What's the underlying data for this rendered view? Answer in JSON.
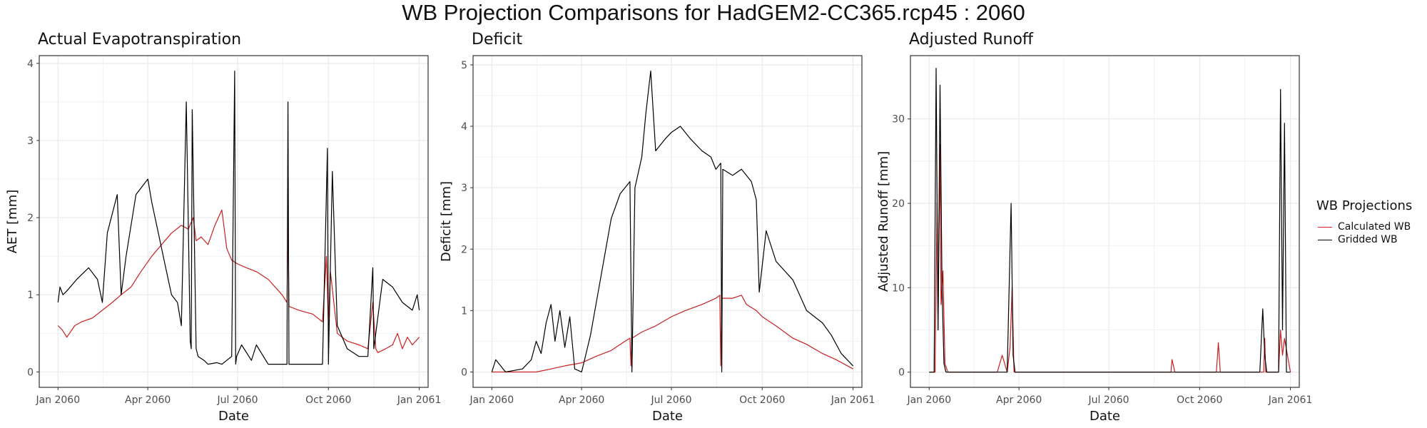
{
  "title": "WB Projection Comparisons for HadGEM2-CC365.rcp45 : 2060",
  "colors": {
    "calculated": "#cc1f1f",
    "gridded": "#000000",
    "grid": "#ebebeb",
    "panel_border": "#333333"
  },
  "legend": {
    "title": "WB Projections",
    "items": [
      {
        "name": "Calculated WB",
        "color": "#cc1f1f"
      },
      {
        "name": "Gridded WB",
        "color": "#000000"
      }
    ]
  },
  "chart_data": [
    {
      "type": "line",
      "title": "Actual Evapotranspiration",
      "xlabel": "Date",
      "ylabel": "AET [mm]",
      "xlim": [
        "2059-12-13",
        "2061-01-10"
      ],
      "ylim": [
        -0.2,
        4.1
      ],
      "x_ticks": [
        "2060-01-01",
        "2060-04-01",
        "2060-07-01",
        "2060-10-01",
        "2061-01-01"
      ],
      "x_tick_labels": [
        "Jan 2060",
        "Apr 2060",
        "Jul 2060",
        "Oct 2060",
        "Jan 2061"
      ],
      "y_ticks": [
        0,
        1,
        2,
        3,
        4
      ],
      "grid": true,
      "legend": "right",
      "series": [
        {
          "name": "Calculated WB",
          "color": "#cc1f1f",
          "x": [
            "2060-01-01",
            "2060-01-05",
            "2060-01-10",
            "2060-01-18",
            "2060-01-25",
            "2060-02-05",
            "2060-02-15",
            "2060-02-25",
            "2060-03-05",
            "2060-03-15",
            "2060-03-25",
            "2060-04-05",
            "2060-04-15",
            "2060-04-25",
            "2060-05-05",
            "2060-05-12",
            "2060-05-17",
            "2060-05-20",
            "2060-05-25",
            "2060-06-01",
            "2060-06-08",
            "2060-06-15",
            "2060-06-20",
            "2060-06-25",
            "2060-07-01",
            "2060-07-10",
            "2060-07-20",
            "2060-08-01",
            "2060-08-15",
            "2060-08-20",
            "2060-08-21",
            "2060-08-22",
            "2060-09-01",
            "2060-09-15",
            "2060-09-25",
            "2060-09-29",
            "2060-10-01",
            "2060-10-03",
            "2060-10-10",
            "2060-10-20",
            "2060-11-01",
            "2060-11-10",
            "2060-11-15",
            "2060-11-18",
            "2060-11-20",
            "2060-11-28",
            "2060-12-05",
            "2060-12-10",
            "2060-12-15",
            "2060-12-20",
            "2060-12-25",
            "2061-01-01"
          ],
          "y": [
            0.6,
            0.55,
            0.45,
            0.6,
            0.65,
            0.7,
            0.8,
            0.9,
            1.0,
            1.1,
            1.3,
            1.5,
            1.65,
            1.8,
            1.9,
            1.85,
            2.0,
            1.7,
            1.75,
            1.65,
            1.9,
            2.1,
            1.6,
            1.45,
            1.4,
            1.35,
            1.3,
            1.2,
            1.0,
            0.9,
            2.0,
            0.85,
            0.8,
            0.75,
            0.65,
            1.5,
            0.6,
            1.3,
            0.5,
            0.4,
            0.35,
            0.3,
            0.9,
            0.3,
            0.25,
            0.3,
            0.35,
            0.5,
            0.3,
            0.45,
            0.35,
            0.45
          ]
        },
        {
          "name": "Gridded WB",
          "color": "#000000",
          "x": [
            "2060-01-01",
            "2060-01-03",
            "2060-01-06",
            "2060-01-10",
            "2060-01-20",
            "2060-02-01",
            "2060-02-10",
            "2060-02-15",
            "2060-02-20",
            "2060-03-01",
            "2060-03-05",
            "2060-03-10",
            "2060-03-20",
            "2060-04-01",
            "2060-04-05",
            "2060-04-10",
            "2060-04-20",
            "2060-04-25",
            "2060-05-01",
            "2060-05-05",
            "2060-05-10",
            "2060-05-14",
            "2060-05-15",
            "2060-05-16",
            "2060-05-20",
            "2060-05-21",
            "2060-05-22",
            "2060-05-28",
            "2060-06-01",
            "2060-06-10",
            "2060-06-15",
            "2060-06-25",
            "2060-06-28",
            "2060-06-29",
            "2060-06-30",
            "2060-07-05",
            "2060-07-15",
            "2060-07-20",
            "2060-08-01",
            "2060-08-10",
            "2060-08-20",
            "2060-08-21",
            "2060-08-22",
            "2060-09-01",
            "2060-09-15",
            "2060-09-25",
            "2060-09-30",
            "2060-10-01",
            "2060-10-05",
            "2060-10-10",
            "2060-10-20",
            "2060-11-01",
            "2060-11-10",
            "2060-11-15",
            "2060-11-16",
            "2060-11-25",
            "2060-12-05",
            "2060-12-15",
            "2060-12-25",
            "2060-12-30",
            "2061-01-01"
          ],
          "y": [
            0.9,
            1.1,
            1.0,
            1.05,
            1.2,
            1.35,
            1.2,
            0.9,
            1.8,
            2.3,
            1.0,
            1.5,
            2.3,
            2.5,
            2.2,
            1.9,
            1.3,
            1.0,
            0.9,
            0.6,
            3.5,
            0.4,
            0.3,
            3.4,
            0.3,
            0.25,
            0.2,
            0.15,
            0.1,
            0.12,
            0.1,
            0.2,
            3.9,
            0.1,
            0.2,
            0.35,
            0.15,
            0.35,
            0.1,
            0.1,
            0.1,
            3.5,
            0.1,
            0.1,
            0.1,
            0.1,
            2.9,
            0.1,
            2.6,
            0.6,
            0.3,
            0.2,
            0.2,
            1.35,
            0.3,
            1.2,
            1.1,
            0.9,
            0.8,
            1.0,
            0.8
          ]
        }
      ]
    },
    {
      "type": "line",
      "title": "Deficit",
      "xlabel": "Date",
      "ylabel": "Deficit [mm]",
      "xlim": [
        "2059-12-13",
        "2061-01-10"
      ],
      "ylim": [
        -0.25,
        5.15
      ],
      "x_ticks": [
        "2060-01-01",
        "2060-04-01",
        "2060-07-01",
        "2060-10-01",
        "2061-01-01"
      ],
      "x_tick_labels": [
        "Jan 2060",
        "Apr 2060",
        "Jul 2060",
        "Oct 2060",
        "Jan 2061"
      ],
      "y_ticks": [
        0,
        1,
        2,
        3,
        4,
        5
      ],
      "grid": true,
      "legend": "right",
      "series": [
        {
          "name": "Calculated WB",
          "color": "#cc1f1f",
          "x": [
            "2060-01-01",
            "2060-01-15",
            "2060-02-15",
            "2060-03-01",
            "2060-03-15",
            "2060-04-01",
            "2060-04-15",
            "2060-05-01",
            "2060-05-15",
            "2060-05-20",
            "2060-05-21",
            "2060-05-22",
            "2060-06-01",
            "2060-06-15",
            "2060-07-01",
            "2060-07-15",
            "2060-08-01",
            "2060-08-15",
            "2060-08-19",
            "2060-08-20",
            "2060-08-21",
            "2060-09-01",
            "2060-09-10",
            "2060-09-15",
            "2060-09-25",
            "2060-10-01",
            "2060-10-15",
            "2060-11-01",
            "2060-11-15",
            "2060-12-01",
            "2060-12-15",
            "2061-01-01"
          ],
          "y": [
            0,
            0,
            0,
            0.05,
            0.1,
            0.15,
            0.25,
            0.35,
            0.5,
            0.55,
            0.1,
            0.55,
            0.65,
            0.75,
            0.9,
            1.0,
            1.1,
            1.2,
            1.25,
            0.1,
            1.2,
            1.2,
            1.25,
            1.1,
            1.0,
            0.9,
            0.75,
            0.55,
            0.45,
            0.3,
            0.2,
            0.05
          ]
        },
        {
          "name": "Gridded WB",
          "color": "#000000",
          "x": [
            "2060-01-01",
            "2060-01-05",
            "2060-01-10",
            "2060-01-15",
            "2060-02-01",
            "2060-02-10",
            "2060-02-15",
            "2060-02-20",
            "2060-02-25",
            "2060-03-01",
            "2060-03-05",
            "2060-03-10",
            "2060-03-15",
            "2060-03-20",
            "2060-03-25",
            "2060-04-01",
            "2060-04-10",
            "2060-04-20",
            "2060-05-01",
            "2060-05-10",
            "2060-05-15",
            "2060-05-20",
            "2060-05-22",
            "2060-05-25",
            "2060-06-01",
            "2060-06-05",
            "2060-06-10",
            "2060-06-15",
            "2060-06-20",
            "2060-06-25",
            "2060-07-01",
            "2060-07-10",
            "2060-07-20",
            "2060-08-01",
            "2060-08-10",
            "2060-08-15",
            "2060-08-20",
            "2060-08-21",
            "2060-08-22",
            "2060-09-01",
            "2060-09-10",
            "2060-09-20",
            "2060-09-25",
            "2060-09-28",
            "2060-10-05",
            "2060-10-15",
            "2060-11-01",
            "2060-11-15",
            "2060-12-01",
            "2060-12-10",
            "2060-12-20",
            "2061-01-01"
          ],
          "y": [
            0,
            0.2,
            0.1,
            0,
            0.05,
            0.2,
            0.5,
            0.3,
            0.8,
            1.1,
            0.5,
            1.0,
            0.4,
            0.9,
            0.05,
            0,
            0.6,
            1.5,
            2.5,
            2.9,
            3.0,
            3.1,
            0,
            3.0,
            3.5,
            4.2,
            4.9,
            3.6,
            3.7,
            3.8,
            3.9,
            4.0,
            3.8,
            3.6,
            3.5,
            3.3,
            3.4,
            0,
            3.3,
            3.2,
            3.3,
            3.1,
            2.8,
            1.3,
            2.3,
            1.8,
            1.5,
            1.0,
            0.8,
            0.6,
            0.3,
            0.1
          ]
        }
      ]
    },
    {
      "type": "line",
      "title": "Adjusted Runoff",
      "xlabel": "Date",
      "ylabel": "Adjusted Runoff [mm]",
      "xlim": [
        "2059-12-13",
        "2061-01-10"
      ],
      "ylim": [
        -1.8,
        37.5
      ],
      "x_ticks": [
        "2060-01-01",
        "2060-04-01",
        "2060-07-01",
        "2060-10-01",
        "2061-01-01"
      ],
      "x_tick_labels": [
        "Jan 2060",
        "Apr 2060",
        "Jul 2060",
        "Oct 2060",
        "Jan 2061"
      ],
      "y_ticks": [
        0,
        10,
        20,
        30
      ],
      "grid": true,
      "legend": "right",
      "series": [
        {
          "name": "Calculated WB",
          "color": "#cc1f1f",
          "x": [
            "2060-01-01",
            "2060-01-07",
            "2060-01-09",
            "2060-01-10",
            "2060-01-12",
            "2060-01-13",
            "2060-01-15",
            "2060-01-17",
            "2060-01-20",
            "2060-03-10",
            "2060-03-15",
            "2060-03-20",
            "2060-03-23",
            "2060-03-25",
            "2060-03-27",
            "2060-04-01",
            "2060-06-01",
            "2060-09-02",
            "2060-09-03",
            "2060-09-06",
            "2060-10-18",
            "2060-10-20",
            "2060-10-22",
            "2060-11-25",
            "2060-12-05",
            "2060-12-06",
            "2060-12-07",
            "2060-12-20",
            "2060-12-22",
            "2060-12-24",
            "2060-12-26",
            "2061-01-01"
          ],
          "y": [
            0,
            0,
            20,
            5,
            27,
            8,
            12,
            1,
            0,
            0,
            2,
            0,
            3,
            10,
            0,
            0,
            0,
            0,
            1.5,
            0,
            0,
            3.5,
            0,
            0,
            0,
            4,
            0,
            0,
            5,
            2,
            4,
            0
          ]
        },
        {
          "name": "Gridded WB",
          "color": "#000000",
          "x": [
            "2060-01-01",
            "2060-01-06",
            "2060-01-08",
            "2060-01-10",
            "2060-01-12",
            "2060-01-14",
            "2060-01-16",
            "2060-01-18",
            "2060-03-20",
            "2060-03-24",
            "2060-03-26",
            "2060-03-28",
            "2060-04-01",
            "2060-12-01",
            "2060-12-04",
            "2060-12-06",
            "2060-12-08",
            "2060-12-20",
            "2060-12-22",
            "2060-12-24",
            "2060-12-26",
            "2060-12-28",
            "2061-01-01"
          ],
          "y": [
            0,
            0,
            36,
            5,
            34,
            10,
            1,
            0,
            0,
            20,
            2,
            0,
            0,
            0,
            7.5,
            2,
            0,
            0,
            33.5,
            5,
            29.5,
            0,
            0
          ]
        }
      ]
    }
  ]
}
